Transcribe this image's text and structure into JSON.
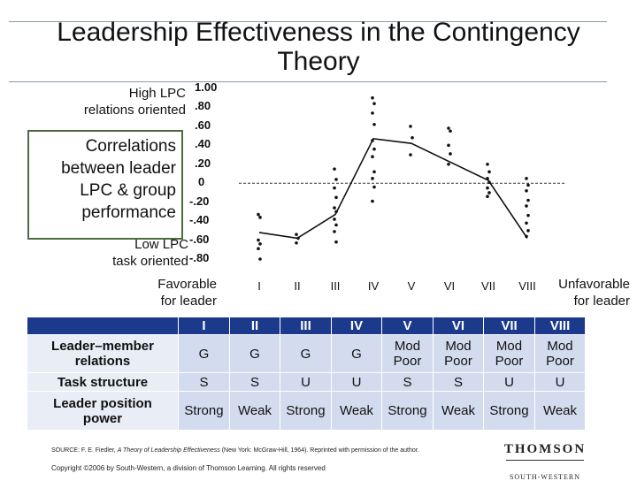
{
  "title": "Leadership Effectiveness in the Contingency Theory",
  "high_lpc": "High LPC\nrelations oriented",
  "low_lpc": "Low LPC\ntask oriented",
  "favorable": "Favorable\nfor leader",
  "unfavorable": "Unfavorable\nfor leader",
  "correlation_box": "Correlations\nbetween leader\nLPC & group\nperformance",
  "chart_data": {
    "type": "line",
    "title": "",
    "xlabel": "",
    "ylabel": "",
    "y_tick_labels": [
      "1.00",
      ".80",
      ".60",
      ".40",
      ".20",
      "0",
      "-.20",
      "-.40",
      "-.60",
      "-.80"
    ],
    "categories": [
      "I",
      "II",
      "III",
      "IV",
      "V",
      "VI",
      "VII",
      "VIII"
    ],
    "ylim": [
      -0.8,
      1.0
    ],
    "median_line": [
      -0.52,
      -0.58,
      -0.33,
      0.47,
      0.42,
      null,
      0.03,
      -0.58
    ],
    "scatter_points": [
      {
        "x": "I",
        "values": [
          -0.33,
          -0.36,
          -0.6,
          -0.64,
          -0.69,
          -0.8
        ]
      },
      {
        "x": "II",
        "values": [
          -0.54,
          -0.58,
          -0.63
        ]
      },
      {
        "x": "III",
        "values": [
          0.15,
          0.04,
          -0.05,
          -0.15,
          -0.26,
          -0.3,
          -0.38,
          -0.44,
          -0.51,
          -0.62
        ]
      },
      {
        "x": "IV",
        "values": [
          0.9,
          0.84,
          0.74,
          0.62,
          0.45,
          0.36,
          0.28,
          0.12,
          0.05,
          -0.04,
          -0.19
        ]
      },
      {
        "x": "V",
        "values": [
          0.6,
          0.48,
          0.3
        ]
      },
      {
        "x": "VI",
        "values": [
          0.58,
          0.55,
          0.4,
          0.31,
          0.2
        ]
      },
      {
        "x": "VII",
        "values": [
          0.2,
          0.12,
          0.05,
          0.01,
          -0.05,
          -0.1,
          -0.14
        ]
      },
      {
        "x": "VIII",
        "values": [
          0.05,
          -0.02,
          -0.08,
          -0.18,
          -0.24,
          -0.34,
          -0.42,
          -0.5,
          -0.56
        ]
      }
    ],
    "reference_line": 0
  },
  "table": {
    "headers": [
      "I",
      "II",
      "III",
      "IV",
      "V",
      "VI",
      "VII",
      "VIII"
    ],
    "rows": [
      {
        "label": "Leader–member\nrelations",
        "cells": [
          "G",
          "G",
          "G",
          "G",
          "Mod\nPoor",
          "Mod\nPoor",
          "Mod\nPoor",
          "Mod\nPoor"
        ]
      },
      {
        "label": "Task structure",
        "cells": [
          "S",
          "S",
          "U",
          "U",
          "S",
          "S",
          "U",
          "U"
        ]
      },
      {
        "label": "Leader position\npower",
        "cells": [
          "Strong",
          "Weak",
          "Strong",
          "Weak",
          "Strong",
          "Weak",
          "Strong",
          "Weak"
        ]
      }
    ]
  },
  "source": {
    "prefix": "SOURCE: F. E. Fiedler, ",
    "book": "A Theory of Leadership Effectiveness",
    "suffix": " (New York: McGraw-Hill, 1964). Reprinted with permission of the author."
  },
  "copyright": "Copyright ©2006 by South-Western, a division of Thomson Learning.  All rights reserved",
  "logo": {
    "top": "THOMSON",
    "bottom": "SOUTH-WESTERN"
  },
  "colors": {
    "table_header": "#1c3a8c",
    "box_border": "#4d6b3f",
    "cell_bg": "#d3dbee"
  }
}
